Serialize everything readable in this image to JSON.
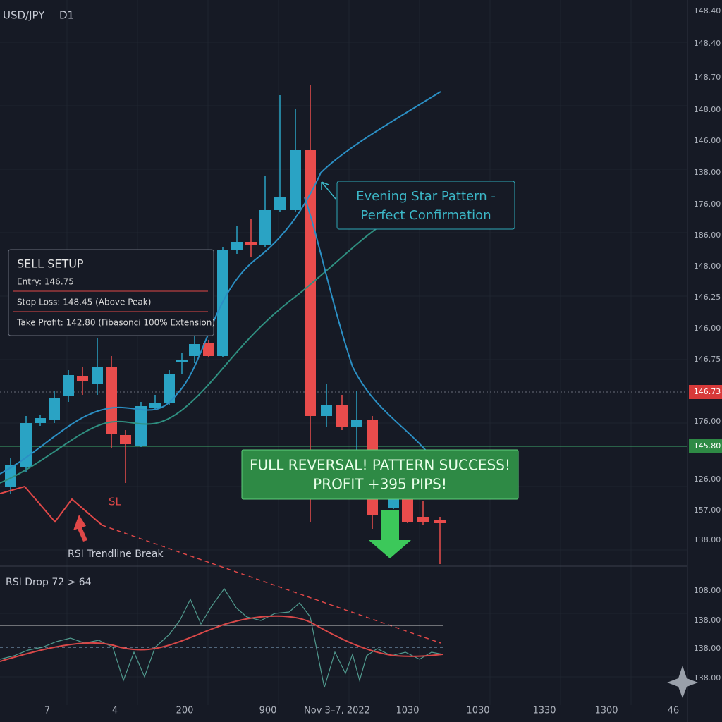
{
  "header": {
    "symbol": "USD/JPY",
    "timeframe": "D1"
  },
  "price_axis": [
    "148.40",
    "148.40",
    "148.70",
    "148.00",
    "146.00",
    "138.00",
    "176.00",
    "186.00",
    "148.00",
    "146.25",
    "146.00",
    "146.75",
    "146.73",
    "176.00",
    "145.80",
    "126.00",
    "157.00",
    "138.00",
    "108.00",
    "138.00",
    "138.00",
    "138.00"
  ],
  "time_axis": [
    "7",
    "4",
    "200",
    "900",
    "Nov 3–7, 2022",
    "1030",
    "1030",
    "1330",
    "1300",
    "46"
  ],
  "sell_setup": {
    "title": "SELL SETUP",
    "entry": "Entry: 146.75",
    "stop_loss": "Stop Loss: 148.45 (Above Peak)",
    "take_profit": "Take Profit: 142.80 (Fibasonci 100% Extension)"
  },
  "pattern_callout": [
    "Evening Star Pattern -",
    "Perfect Confirmation"
  ],
  "success_banner": [
    "FULL REVERSAL! PATTERN SUCCESS!",
    "PROFIT +395 PIPS!"
  ],
  "sl_label": "SL",
  "rsi_break_label": "RSI Trendline Break",
  "rsi_label": "RSI Drop 72 > 64"
}
